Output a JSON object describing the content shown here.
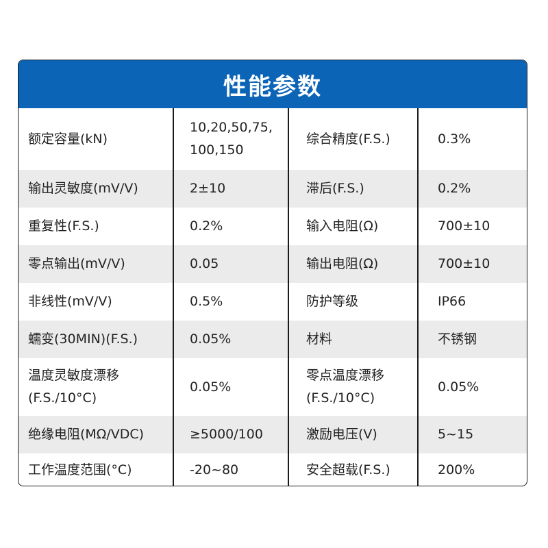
{
  "header": {
    "title": "性能参数"
  },
  "colors": {
    "header_bg": "#0b64b6",
    "alt_row_bg": "#ebebeb"
  },
  "rows": [
    {
      "label1": "额定容量(kN)",
      "value1": "10,20,50,75,\n100,150",
      "label2": "综合精度(F.S.)",
      "value2": "0.3%"
    },
    {
      "label1": "输出灵敏度(mV/V)",
      "value1": "2±10",
      "label2": "滞后(F.S.)",
      "value2": "0.2%"
    },
    {
      "label1": "重复性(F.S.)",
      "value1": "0.2%",
      "label2": "输入电阻(Ω)",
      "value2": "700±10"
    },
    {
      "label1": "零点输出(mV/V)",
      "value1": "0.05",
      "label2": "输出电阻(Ω)",
      "value2": "700±10"
    },
    {
      "label1": "非线性(mV/V)",
      "value1": "0.5%",
      "label2": "防护等级",
      "value2": "IP66"
    },
    {
      "label1": "蠕变(30MIN)(F.S.)",
      "value1": "0.05%",
      "label2": "材料",
      "value2": "不锈钢"
    },
    {
      "label1": "温度灵敏度漂移\n(F.S./10°C)",
      "value1": "0.05%",
      "label2": "零点温度漂移\n(F.S./10°C)",
      "value2": "0.05%"
    },
    {
      "label1": "绝缘电阻(MΩ/VDC)",
      "value1": "≥5000/100",
      "label2": "激励电压(V)",
      "value2": "5~15"
    },
    {
      "label1": "工作温度范围(°C)",
      "value1": "-20~80",
      "label2": "安全超载(F.S.)",
      "value2": "200%"
    }
  ]
}
